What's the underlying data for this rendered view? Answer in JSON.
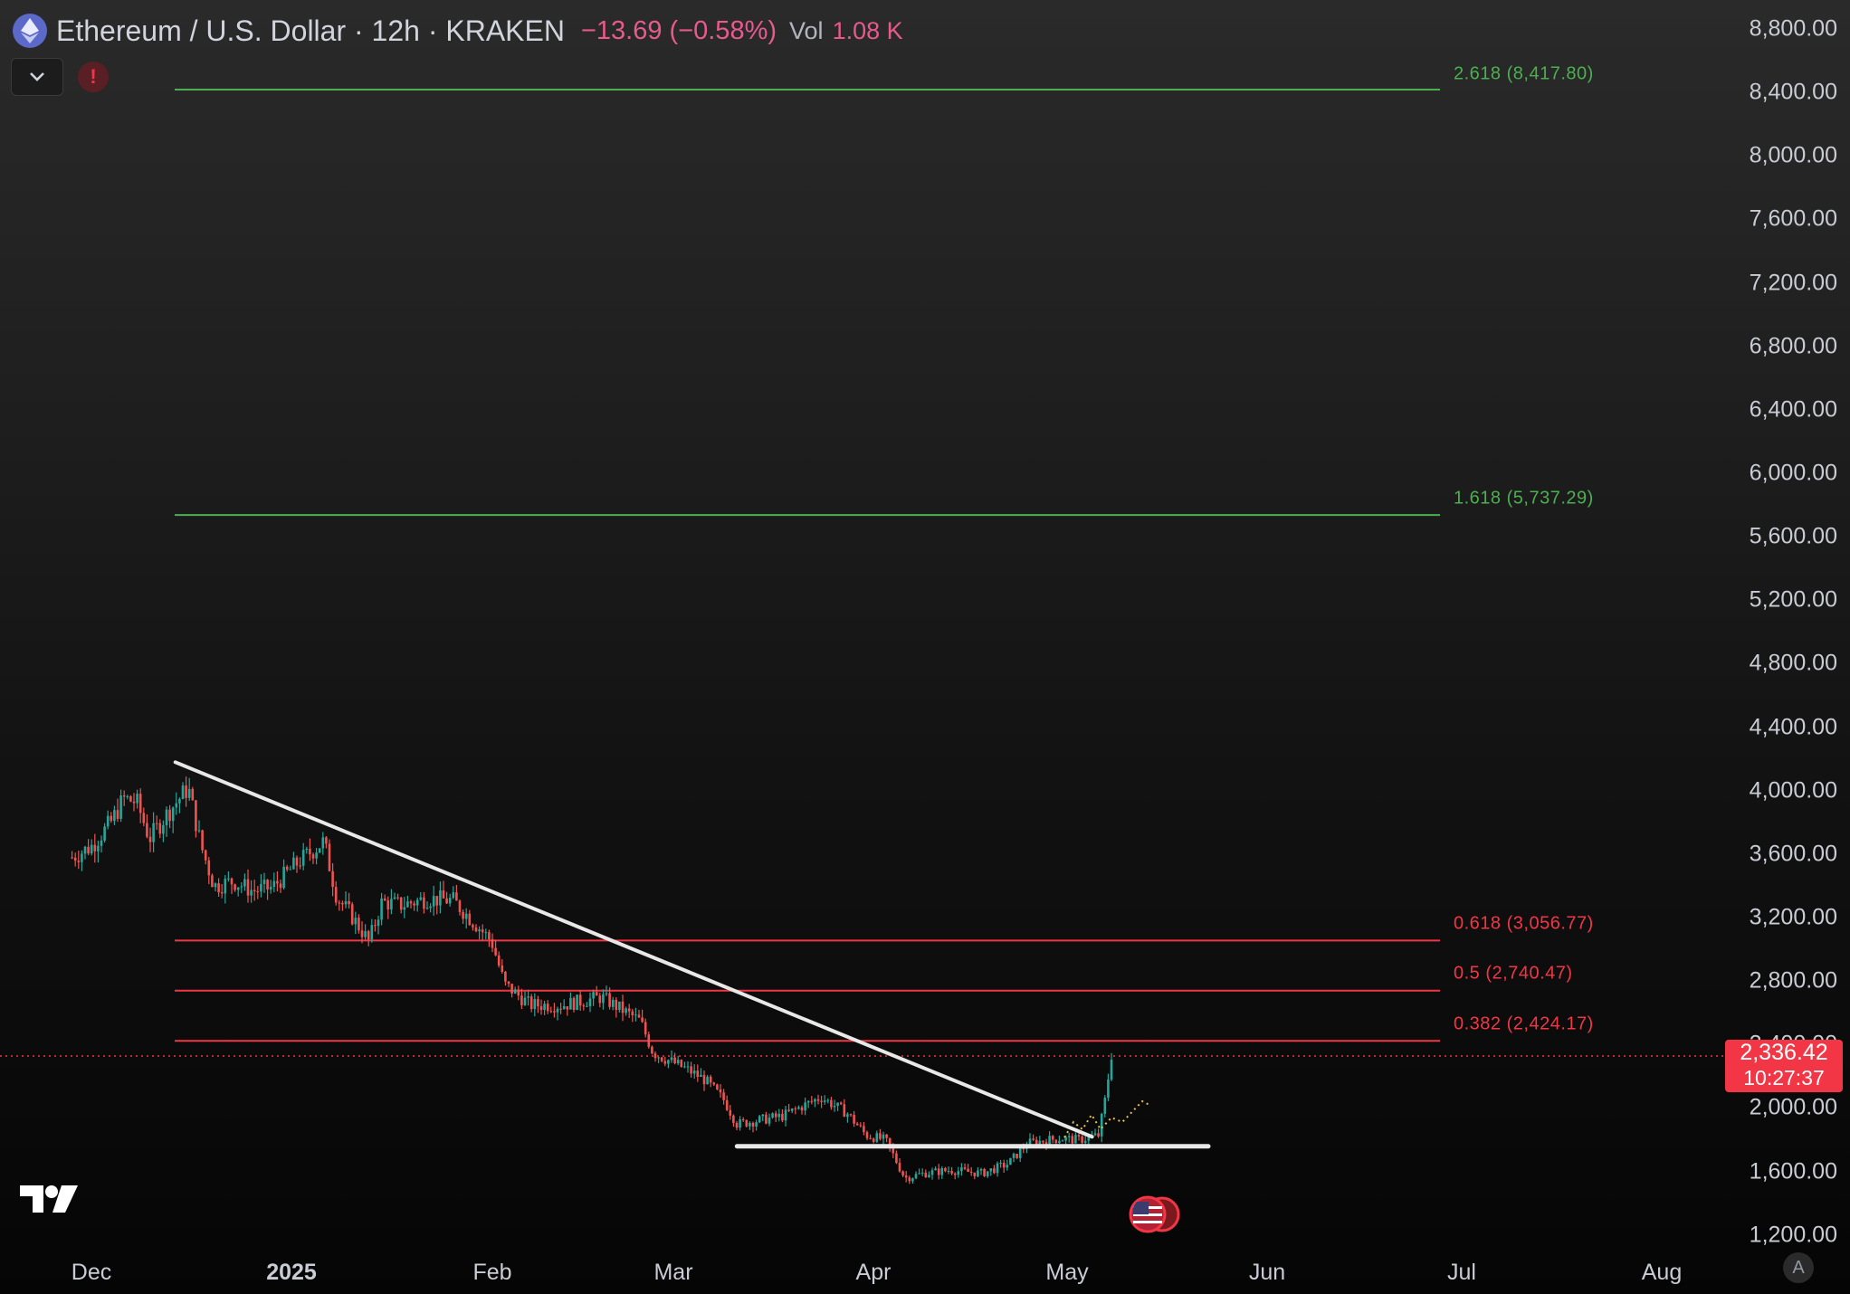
{
  "header": {
    "symbol_title": "Ethereum / U.S. Dollar · 12h · KRAKEN",
    "change": "−13.69 (−0.58%)",
    "volume_label": "Vol",
    "volume_value": "1.08 K"
  },
  "y_axis_ticks": [
    "8,800.00",
    "8,400.00",
    "8,000.00",
    "7,600.00",
    "7,200.00",
    "6,800.00",
    "6,400.00",
    "6,000.00",
    "5,600.00",
    "5,200.00",
    "4,800.00",
    "4,400.00",
    "4,000.00",
    "3,600.00",
    "3,200.00",
    "2,800.00",
    "2,400.00",
    "2,000.00",
    "1,600.00",
    "1,200.00"
  ],
  "x_axis_ticks": [
    "Dec",
    "2025",
    "Feb",
    "Mar",
    "Apr",
    "May",
    "Jun",
    "Jul",
    "Aug"
  ],
  "fib_levels": [
    {
      "label": "2.618 (8,417.80)",
      "value": 8417.8,
      "color": "#4caf50"
    },
    {
      "label": "1.618 (5,737.29)",
      "value": 5737.29,
      "color": "#4caf50"
    },
    {
      "label": "0.618 (3,056.77)",
      "value": 3056.77,
      "color": "#f23645"
    },
    {
      "label": "0.5 (2,740.47)",
      "value": 2740.47,
      "color": "#f23645"
    },
    {
      "label": "0.382 (2,424.17)",
      "value": 2424.17,
      "color": "#f23645"
    }
  ],
  "current_price": {
    "price": "2,336.42",
    "countdown": "10:27:37"
  },
  "colors": {
    "up": "#26a69a",
    "down": "#ef5350",
    "fib_green": "#4caf50",
    "fib_red": "#f23645",
    "trendline": "#e8e8e8",
    "accent_price": "#f23645"
  },
  "chart_data": {
    "type": "candlestick",
    "x_ticks": [
      "Dec",
      "2025",
      "Feb",
      "Mar",
      "Apr",
      "May",
      "Jun",
      "Jul",
      "Aug"
    ],
    "ylim": [
      1200,
      8800
    ],
    "close_path": [
      [
        "2024-11-28",
        3580
      ],
      [
        "2024-12-01",
        3650
      ],
      [
        "2024-12-04",
        3800
      ],
      [
        "2024-12-06",
        3950
      ],
      [
        "2024-12-08",
        3930
      ],
      [
        "2024-12-10",
        3700
      ],
      [
        "2024-12-13",
        3870
      ],
      [
        "2024-12-16",
        4020
      ],
      [
        "2024-12-18",
        3650
      ],
      [
        "2024-12-20",
        3400
      ],
      [
        "2024-12-23",
        3430
      ],
      [
        "2024-12-26",
        3370
      ],
      [
        "2024-12-29",
        3390
      ],
      [
        "2025-01-02",
        3550
      ],
      [
        "2025-01-06",
        3680
      ],
      [
        "2025-01-08",
        3330
      ],
      [
        "2025-01-10",
        3230
      ],
      [
        "2025-01-13",
        3050
      ],
      [
        "2025-01-15",
        3300
      ],
      [
        "2025-01-18",
        3280
      ],
      [
        "2025-01-22",
        3320
      ],
      [
        "2025-01-26",
        3310
      ],
      [
        "2025-01-30",
        3140
      ],
      [
        "2025-02-01",
        3050
      ],
      [
        "2025-02-03",
        2780
      ],
      [
        "2025-02-07",
        2650
      ],
      [
        "2025-02-12",
        2650
      ],
      [
        "2025-02-18",
        2700
      ],
      [
        "2025-02-24",
        2550
      ],
      [
        "2025-02-26",
        2350
      ],
      [
        "2025-03-03",
        2250
      ],
      [
        "2025-03-06",
        2180
      ],
      [
        "2025-03-09",
        2050
      ],
      [
        "2025-03-11",
        1900
      ],
      [
        "2025-03-18",
        1950
      ],
      [
        "2025-03-24",
        2070
      ],
      [
        "2025-03-28",
        1970
      ],
      [
        "2025-03-31",
        1830
      ],
      [
        "2025-04-03",
        1800
      ],
      [
        "2025-04-06",
        1560
      ],
      [
        "2025-04-09",
        1590
      ],
      [
        "2025-04-13",
        1610
      ],
      [
        "2025-04-18",
        1590
      ],
      [
        "2025-04-22",
        1650
      ],
      [
        "2025-04-25",
        1780
      ],
      [
        "2025-04-30",
        1810
      ],
      [
        "2025-05-03",
        1800
      ],
      [
        "2025-05-06",
        1830
      ],
      [
        "2025-05-07",
        2050
      ],
      [
        "2025-05-08",
        2336
      ]
    ],
    "trendlines": [
      {
        "name": "descending-resistance",
        "from": [
          "2024-12-14",
          4180
        ],
        "to": [
          "2025-05-05",
          1820
        ]
      },
      {
        "name": "horizontal-support",
        "from": [
          "2025-03-11",
          1760
        ],
        "to": [
          "2025-05-23",
          1760
        ]
      }
    ],
    "last_price": 2336.42
  }
}
